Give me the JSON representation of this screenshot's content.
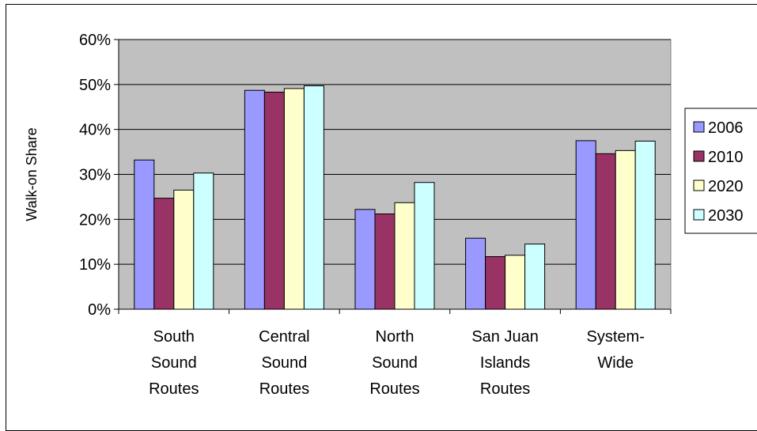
{
  "chart_data": {
    "type": "bar",
    "title": "",
    "xlabel": "",
    "ylabel": "Walk-on Share",
    "ylim": [
      0,
      0.6
    ],
    "yticks": [
      "0%",
      "10%",
      "20%",
      "30%",
      "40%",
      "50%",
      "60%"
    ],
    "categories": [
      [
        "South",
        "Sound",
        "Routes"
      ],
      [
        "Central",
        "Sound",
        "Routes"
      ],
      [
        "North",
        "Sound",
        "Routes"
      ],
      [
        "San Juan",
        "Islands",
        "Routes"
      ],
      [
        "System-",
        "Wide"
      ]
    ],
    "series": [
      {
        "name": "2006",
        "color": "#9999ff",
        "values": [
          0.332,
          0.487,
          0.222,
          0.158,
          0.375
        ]
      },
      {
        "name": "2010",
        "color": "#993366",
        "values": [
          0.247,
          0.483,
          0.212,
          0.117,
          0.346
        ]
      },
      {
        "name": "2020",
        "color": "#ffffcc",
        "values": [
          0.265,
          0.491,
          0.237,
          0.12,
          0.353
        ]
      },
      {
        "name": "2030",
        "color": "#ccffff",
        "values": [
          0.303,
          0.497,
          0.282,
          0.145,
          0.374
        ]
      }
    ],
    "grid": true,
    "legend_position": "right",
    "plot_background": "#c0c0c0"
  }
}
